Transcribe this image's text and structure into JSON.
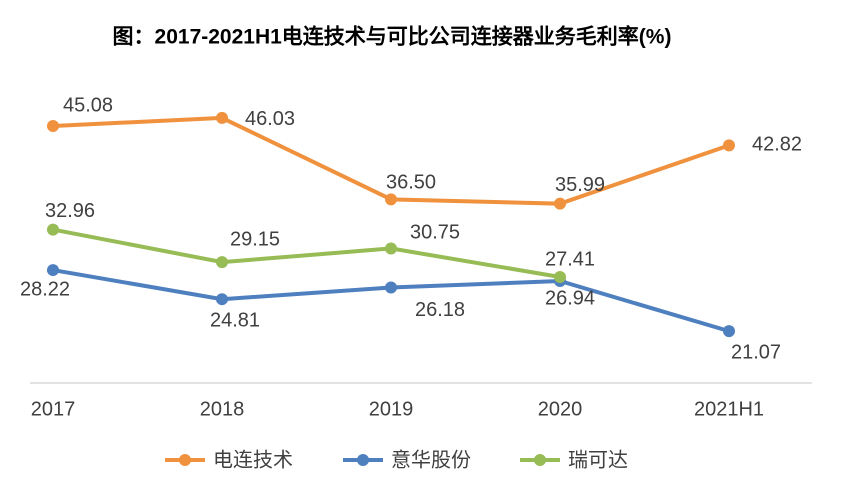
{
  "chart_data": {
    "type": "line",
    "title": "图：2017-2021H1电连技术与可比公司连接器业务毛利率(%)",
    "categories": [
      "2017",
      "2018",
      "2019",
      "2020",
      "2021H1"
    ],
    "series": [
      {
        "name": "电连技术",
        "color": "#f0913e",
        "values": [
          45.08,
          46.03,
          36.5,
          35.99,
          42.82
        ],
        "value_labels": [
          "45.08",
          "46.03",
          "36.50",
          "35.99",
          "42.82"
        ]
      },
      {
        "name": "意华股份",
        "color": "#4e7fbf",
        "values": [
          28.22,
          24.81,
          26.18,
          26.94,
          21.07
        ],
        "value_labels": [
          "28.22",
          "24.81",
          "26.18",
          "26.94",
          "21.07"
        ]
      },
      {
        "name": "瑞可达",
        "color": "#97bb55",
        "values": [
          32.96,
          29.15,
          30.75,
          27.41,
          null
        ],
        "value_labels": [
          "32.96",
          "29.15",
          "30.75",
          "27.41",
          null
        ]
      }
    ],
    "ylim": [
      15,
      50
    ],
    "legend": "bottom"
  }
}
